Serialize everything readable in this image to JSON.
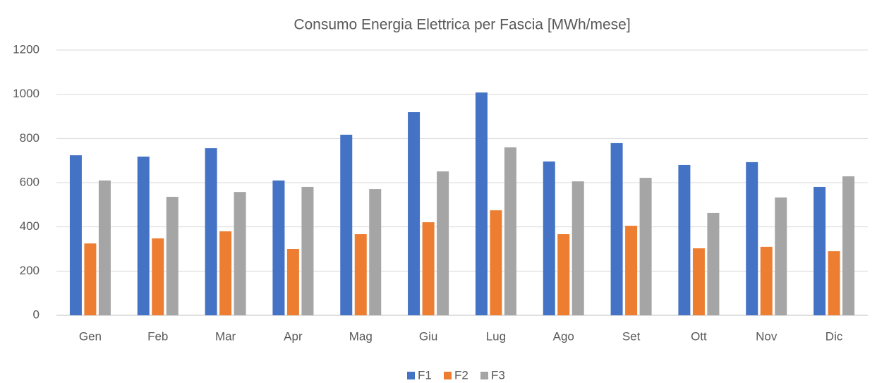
{
  "chart_data": {
    "type": "bar",
    "title": "Consumo Energia Elettrica per Fascia [MWh/mese]",
    "categories": [
      "Gen",
      "Feb",
      "Mar",
      "Apr",
      "Mag",
      "Giu",
      "Lug",
      "Ago",
      "Set",
      "Ott",
      "Nov",
      "Dic"
    ],
    "series": [
      {
        "name": "F1",
        "color": "#4472c4",
        "values": [
          724,
          718,
          756,
          610,
          817,
          919,
          1008,
          696,
          779,
          680,
          693,
          581
        ]
      },
      {
        "name": "F2",
        "color": "#ed7d31",
        "values": [
          325,
          348,
          380,
          300,
          367,
          421,
          475,
          367,
          405,
          303,
          310,
          290
        ]
      },
      {
        "name": "F3",
        "color": "#a5a5a5",
        "values": [
          610,
          536,
          558,
          581,
          571,
          651,
          760,
          606,
          622,
          463,
          533,
          629
        ]
      }
    ],
    "ylim": [
      0,
      1200
    ],
    "yticks": [
      0,
      200,
      400,
      600,
      800,
      1000,
      1200
    ],
    "grid": true,
    "legend": "bottom"
  }
}
